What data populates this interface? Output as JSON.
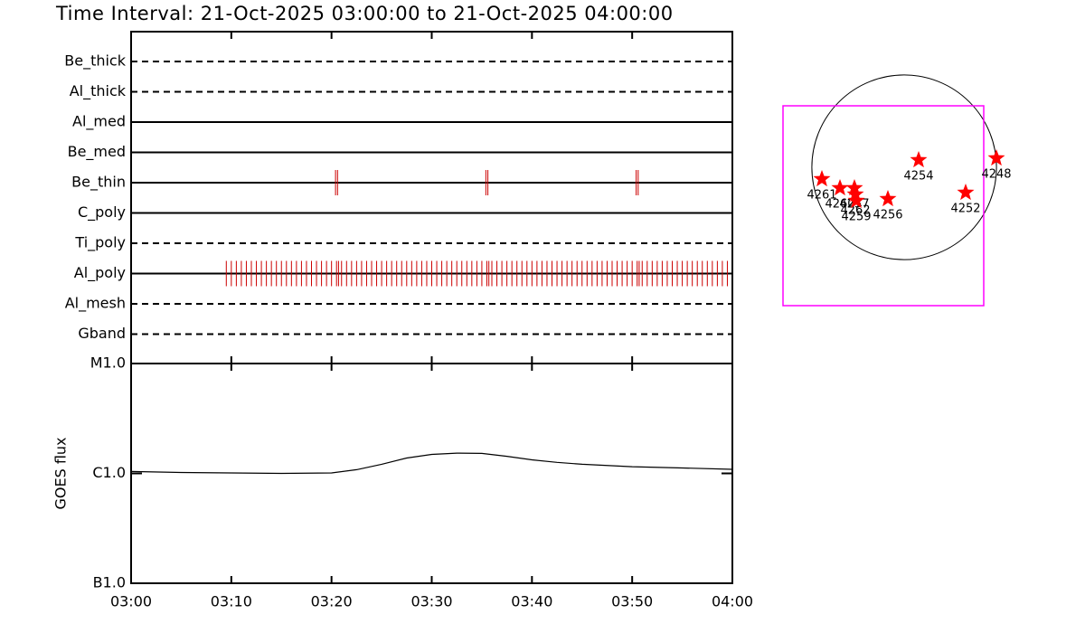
{
  "chart_data": [
    {
      "type": "timeline",
      "title": "Time Interval: 21-Oct-2025 03:00:00 to 21-Oct-2025 04:00:00",
      "xlim": [
        0,
        60
      ],
      "xticks": [
        {
          "value": 0,
          "label": "03:00"
        },
        {
          "value": 10,
          "label": "03:10"
        },
        {
          "value": 20,
          "label": "03:20"
        },
        {
          "value": 30,
          "label": "03:30"
        },
        {
          "value": 40,
          "label": "03:40"
        },
        {
          "value": 50,
          "label": "03:50"
        },
        {
          "value": 60,
          "label": "04:00"
        }
      ],
      "color": "#cc0000",
      "filters": [
        {
          "name": "Be_thick",
          "style": "dashed",
          "times": []
        },
        {
          "name": "Al_thick",
          "style": "dashed",
          "times": []
        },
        {
          "name": "Al_med",
          "style": "solid",
          "times": []
        },
        {
          "name": "Be_med",
          "style": "solid",
          "times": []
        },
        {
          "name": "Be_thin",
          "style": "solid",
          "times": [
            20.4,
            20.6,
            35.4,
            35.6,
            50.4,
            50.6
          ]
        },
        {
          "name": "C_poly",
          "style": "solid",
          "times": []
        },
        {
          "name": "Ti_poly",
          "style": "dashed",
          "times": []
        },
        {
          "name": "Al_poly",
          "style": "solid",
          "times": [
            9.5,
            10,
            10.5,
            11,
            11.5,
            12,
            12.5,
            13,
            13.5,
            14,
            14.5,
            15,
            15.5,
            16,
            16.5,
            17,
            17.5,
            18,
            18.5,
            19,
            19.5,
            20,
            20.5,
            20.7,
            21,
            21.5,
            22,
            22.5,
            23,
            23.5,
            24,
            24.5,
            25,
            25.5,
            26,
            26.5,
            27,
            27.5,
            28,
            28.5,
            29,
            29.5,
            30,
            30.5,
            31,
            31.5,
            32,
            32.5,
            33,
            33.5,
            34,
            34.5,
            35,
            35.5,
            35.7,
            36,
            36.5,
            37,
            37.5,
            38,
            38.5,
            39,
            39.5,
            40,
            40.5,
            41,
            41.5,
            42,
            42.5,
            43,
            43.5,
            44,
            44.5,
            45,
            45.5,
            46,
            46.5,
            47,
            47.5,
            48,
            48.5,
            49,
            49.5,
            50,
            50.5,
            50.7,
            51,
            51.5,
            52,
            52.5,
            53,
            53.5,
            54,
            54.5,
            55,
            55.5,
            56,
            56.5,
            57,
            57.5,
            58,
            58.5,
            59,
            59.5
          ]
        },
        {
          "name": "Al_mesh",
          "style": "dashed",
          "times": []
        },
        {
          "name": "Gband",
          "style": "dashed",
          "times": []
        }
      ]
    },
    {
      "type": "line",
      "y_label": "GOES flux",
      "log_scale": true,
      "x": [
        0,
        5,
        10,
        15,
        20,
        22.5,
        25,
        27.5,
        30,
        32.5,
        35,
        37.5,
        40,
        42.5,
        45,
        50,
        55,
        60
      ],
      "values": [
        1.04e-06,
        1.02e-06,
        1.01e-06,
        1e-06,
        1.01e-06,
        1.08e-06,
        1.21e-06,
        1.38e-06,
        1.49e-06,
        1.53e-06,
        1.52e-06,
        1.43e-06,
        1.33e-06,
        1.26e-06,
        1.21e-06,
        1.15e-06,
        1.12e-06,
        1.09e-06
      ],
      "color": "#000000",
      "xlim": [
        0,
        60
      ],
      "ylim": [
        1e-07,
        1e-05
      ],
      "yticks": [
        {
          "value": 1e-07,
          "label": "B1.0"
        },
        {
          "value": 1e-06,
          "label": "C1.0"
        },
        {
          "value": 1e-05,
          "label": "M1.0"
        }
      ]
    },
    {
      "type": "map",
      "xlim": [
        -1425,
        1425
      ],
      "ylim": [
        -1567.5,
        1282.5
      ],
      "disk_radius": 970,
      "fov": {
        "x": [
          -1273,
          836
        ],
        "y": [
          -1453.5,
          646
        ],
        "color": "#ff00ff"
      },
      "color": "#ff0000",
      "regions": [
        {
          "name": "4261",
          "x": -864.5,
          "y": -123.5
        },
        {
          "name": "4260",
          "x": -674.5,
          "y": -218.5
        },
        {
          "name": "4257",
          "x": -522.5,
          "y": -218.5
        },
        {
          "name": "4262",
          "x": -513,
          "y": -285
        },
        {
          "name": "4259",
          "x": -503.5,
          "y": -351.5
        },
        {
          "name": "4256",
          "x": -171,
          "y": -332.5
        },
        {
          "name": "4254",
          "x": 152,
          "y": 76
        },
        {
          "name": "4252",
          "x": 646,
          "y": -266
        },
        {
          "name": "4248",
          "x": 969,
          "y": 95
        }
      ]
    }
  ]
}
